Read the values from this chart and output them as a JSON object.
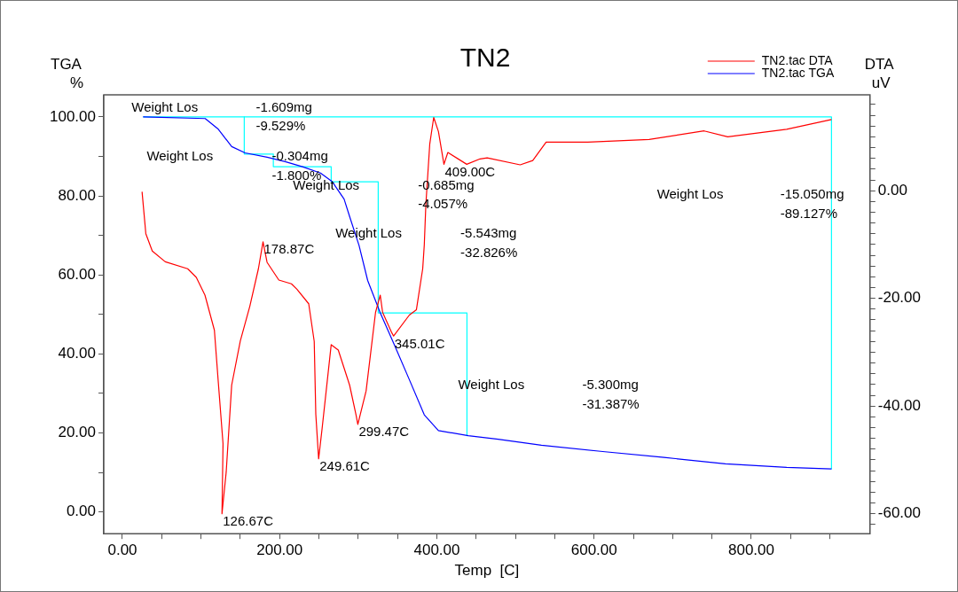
{
  "chart_data": {
    "type": "line",
    "title": "TN2",
    "xlabel": "Temp  [C]",
    "ylabel": "TGA %",
    "y2label": "DTA uV",
    "legend": "top right",
    "marker": "none",
    "grid": false,
    "xlim": [
      -23.7,
      951
    ],
    "xticks": [
      {
        "value": 0,
        "label": "0.00"
      },
      {
        "value": 50,
        "label": null
      },
      {
        "value": 100,
        "label": null
      },
      {
        "value": 150,
        "label": null
      },
      {
        "value": 200,
        "label": "200.00"
      },
      {
        "value": 250,
        "label": null
      },
      {
        "value": 300,
        "label": null
      },
      {
        "value": 350,
        "label": null
      },
      {
        "value": 400,
        "label": "400.00"
      },
      {
        "value": 450,
        "label": null
      },
      {
        "value": 500,
        "label": null
      },
      {
        "value": 550,
        "label": null
      },
      {
        "value": 600,
        "label": "600.00"
      },
      {
        "value": 650,
        "label": null
      },
      {
        "value": 700,
        "label": null
      },
      {
        "value": 750,
        "label": null
      },
      {
        "value": 800,
        "label": "800.00"
      },
      {
        "value": 850,
        "label": null
      },
      {
        "value": 900,
        "label": null
      }
    ],
    "ylim": [
      -5.5,
      105.6
    ],
    "yticks": [
      {
        "value": 0,
        "label": "0.00"
      },
      {
        "value": 10,
        "label": null
      },
      {
        "value": 20,
        "label": "20.00"
      },
      {
        "value": 30,
        "label": null
      },
      {
        "value": 40,
        "label": "40.00"
      },
      {
        "value": 50,
        "label": null
      },
      {
        "value": 60,
        "label": "60.00"
      },
      {
        "value": 70,
        "label": null
      },
      {
        "value": 80,
        "label": "80.00"
      },
      {
        "value": 90,
        "label": null
      },
      {
        "value": 100,
        "label": "100.00"
      }
    ],
    "y2lim": [
      -63.7,
      17.8
    ],
    "y2ticks": [
      {
        "value": -62,
        "label": null
      },
      {
        "value": -60,
        "label": "-60.00"
      },
      {
        "value": -58,
        "label": null
      },
      {
        "value": -56,
        "label": null
      },
      {
        "value": -54,
        "label": null
      },
      {
        "value": -52,
        "label": null
      },
      {
        "value": -50,
        "label": null
      },
      {
        "value": -48,
        "label": null
      },
      {
        "value": -46,
        "label": null
      },
      {
        "value": -44,
        "label": null
      },
      {
        "value": -42,
        "label": null
      },
      {
        "value": -40,
        "label": "-40.00"
      },
      {
        "value": -38,
        "label": null
      },
      {
        "value": -36,
        "label": null
      },
      {
        "value": -34,
        "label": null
      },
      {
        "value": -32,
        "label": null
      },
      {
        "value": -30,
        "label": null
      },
      {
        "value": -28,
        "label": null
      },
      {
        "value": -26,
        "label": null
      },
      {
        "value": -24,
        "label": null
      },
      {
        "value": -22,
        "label": null
      },
      {
        "value": -20,
        "label": "-20.00"
      },
      {
        "value": -18,
        "label": null
      },
      {
        "value": -16,
        "label": null
      },
      {
        "value": -14,
        "label": null
      },
      {
        "value": -12,
        "label": null
      },
      {
        "value": -10,
        "label": null
      },
      {
        "value": -8,
        "label": null
      },
      {
        "value": -6,
        "label": null
      },
      {
        "value": -4,
        "label": null
      },
      {
        "value": -2,
        "label": null
      },
      {
        "value": 0,
        "label": "0.00"
      },
      {
        "value": 2,
        "label": null
      },
      {
        "value": 4,
        "label": null
      },
      {
        "value": 6,
        "label": null
      },
      {
        "value": 8,
        "label": null
      },
      {
        "value": 10,
        "label": null
      },
      {
        "value": 12,
        "label": null
      },
      {
        "value": 14,
        "label": null
      },
      {
        "value": 16,
        "label": null
      }
    ],
    "series": [
      {
        "name": "TN2.tac DTA",
        "color": "#ff0000",
        "axis": "y2",
        "x": [
          25,
          29.8,
          38,
          54.5,
          83,
          94,
          105,
          117,
          122,
          128,
          126.67,
          132,
          139,
          150,
          162,
          173,
          178.87,
          184,
          199,
          215,
          222,
          237,
          244,
          246,
          249.61,
          254,
          265.6,
          274.6,
          289,
          297,
          299.47,
          310,
          322,
          328,
          331,
          342,
          345.01,
          365,
          374,
          382,
          384,
          386,
          391,
          396,
          402,
          409,
          414,
          438,
          455,
          464,
          506,
          522,
          539,
          592,
          670,
          740,
          770,
          845,
          902
        ],
        "values": [
          -0.2,
          -8,
          -11.2,
          -13.2,
          -14.5,
          -16.1,
          -19.4,
          -25.9,
          -35.6,
          -47,
          -60,
          -52.3,
          -36.1,
          -27.9,
          -21.5,
          -14.5,
          -9.5,
          -13.3,
          -16.6,
          -17.3,
          -18.3,
          -21,
          -28,
          -41.5,
          -49.8,
          -44.2,
          -28.6,
          -29.6,
          -36.1,
          -41.5,
          -43.4,
          -37.2,
          -22.6,
          -19.4,
          -22.6,
          -26.2,
          -27,
          -23.1,
          -22.1,
          -14.5,
          -10.1,
          -2.6,
          8.7,
          13.6,
          11,
          4.9,
          7.1,
          4.9,
          5.9,
          6.1,
          4.8,
          5.6,
          9,
          9,
          9.5,
          11.1,
          10,
          11.4,
          13.2
        ]
      },
      {
        "name": "TN2.tac TGA",
        "color": "#0000ff",
        "x": [
          26.3,
          105.3,
          122,
          139,
          156,
          184,
          207,
          229,
          252,
          267,
          282,
          289,
          301,
          312,
          328,
          346,
          365,
          384,
          402,
          440,
          478,
          533,
          611,
          689,
          767,
          845,
          902
        ],
        "values": [
          100,
          99.6,
          96.9,
          92.5,
          90.9,
          89.8,
          88.7,
          87.4,
          85.8,
          83.6,
          79.2,
          74.8,
          67.5,
          58.6,
          50.4,
          42.3,
          33.5,
          24.6,
          20.6,
          19.3,
          18.4,
          16.9,
          15.3,
          13.8,
          12.2,
          11.3,
          10.9
        ]
      },
      {
        "color": "#00ffff",
        "x": [
          26.3,
          902,
          902
        ],
        "values": [
          100,
          100,
          10.9
        ]
      },
      {
        "color": "#00ffff",
        "x": [
          155,
          155,
          192,
          192,
          265.6,
          265.6,
          325.4,
          325.4,
          438.3,
          438.3
        ],
        "values": [
          100,
          90.6,
          90.6,
          87.4,
          87.4,
          83.6,
          83.6,
          50.4,
          50.4,
          19.3
        ]
      }
    ],
    "annotations": [
      "Weight Los",
      "-1.609mg",
      "-9.529%",
      "Weight Los",
      "-0.304mg",
      "-1.800%",
      "Weight Los",
      "-0.685mg",
      "-4.057%",
      "Weight Los",
      "-5.543mg",
      "-32.826%",
      "Weight Los",
      "-5.300mg",
      "-31.387%",
      "Weight Los",
      "-15.050mg",
      "-89.127%",
      {
        "text": "126.67C",
        "x": 126.67,
        "y": -0.5
      },
      {
        "text": "178.87C",
        "x": 178.87,
        "y": 68.3
      },
      {
        "text": "249.61C",
        "x": 249.61,
        "y": 13.4
      },
      {
        "text": "299.47C",
        "x": 299.47,
        "y": 22.1
      },
      {
        "text": "345.01C",
        "x": 345.01,
        "y": 44.4
      },
      {
        "text": "409.00C",
        "x": 409,
        "y": 87.9
      }
    ]
  }
}
